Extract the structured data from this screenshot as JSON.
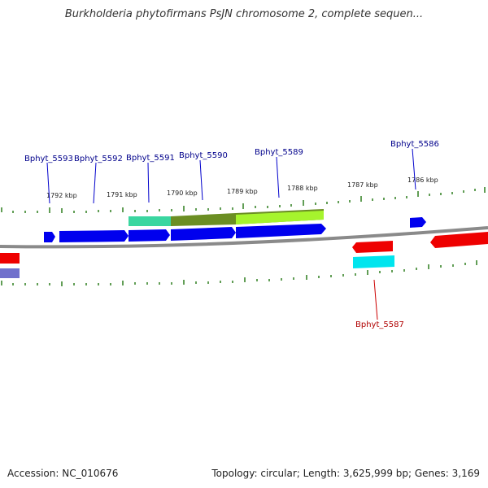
{
  "title": "Burkholderia phytofirmans PsJN chromosome 2, complete sequen...",
  "footer": {
    "accession": "Accession: NC_010676",
    "stats": "Topology: circular; Length: 3,625,999 bp; Genes: 3,169"
  },
  "ruler": [
    "1792 kbp",
    "1791 kbp",
    "1790 kbp",
    "1789 kbp",
    "1788 kbp",
    "1787 kbp",
    "1786 kbp"
  ],
  "genes_top": [
    "Bphyt_5593",
    "Bphyt_5592",
    "Bphyt_5591",
    "Bphyt_5590",
    "Bphyt_5589",
    "Bphyt_5586"
  ],
  "genes_bottom": [
    "Bphyt_5587"
  ],
  "colors": {
    "forward_gene": "#0000ee",
    "reverse_gene": "#ee0000",
    "label_forward": "#00008b",
    "label_reverse": "#b00000",
    "tick": "#2e7d1e",
    "backbone": "#888888"
  }
}
